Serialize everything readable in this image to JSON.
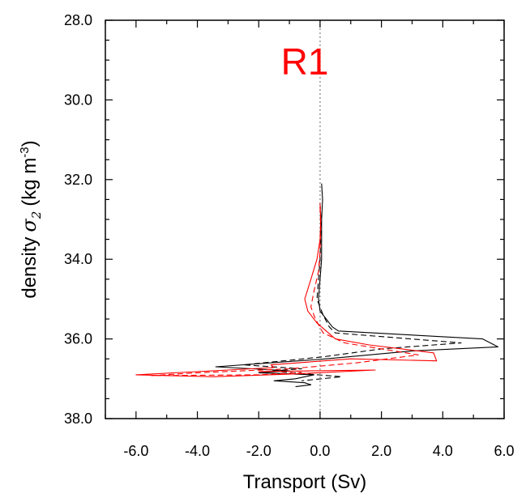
{
  "chart_data": {
    "type": "line",
    "title": "R1",
    "title_color": "#ff0000",
    "xlabel": "Transport (Sv)",
    "ylabel_prefix": "density",
    "ylabel_symbol": "σ",
    "ylabel_subscript": "2",
    "ylabel_units": "(kg m",
    "ylabel_units_superscript": "-3",
    "ylabel_units_close": ")",
    "xlim": [
      -7.0,
      6.0
    ],
    "ylim": [
      28.0,
      38.0
    ],
    "y_inverted": true,
    "x_ticks": [
      "-6.0",
      "-4.0",
      "-2.0",
      "0.0",
      "2.0",
      "4.0",
      "6.0"
    ],
    "y_ticks": [
      "28.0",
      "30.0",
      "32.0",
      "34.0",
      "36.0",
      "38.0"
    ],
    "zero_line": {
      "x": 0,
      "color": "#999999",
      "style": "dotted"
    },
    "grid": false,
    "series": [
      {
        "color": "#000000",
        "dash": "solid",
        "points": [
          [
            0.05,
            32.1
          ],
          [
            0.08,
            32.5
          ],
          [
            0.05,
            33.0
          ],
          [
            0.05,
            33.5
          ],
          [
            0.05,
            34.0
          ],
          [
            0.0,
            34.5
          ],
          [
            -0.05,
            35.0
          ],
          [
            0.0,
            35.3
          ],
          [
            0.2,
            35.5
          ],
          [
            0.4,
            35.7
          ],
          [
            0.6,
            35.8
          ],
          [
            5.3,
            36.0
          ],
          [
            5.8,
            36.2
          ],
          [
            3.0,
            36.3
          ],
          [
            0.2,
            36.5
          ],
          [
            -3.4,
            36.7
          ],
          [
            -1.0,
            36.8
          ],
          [
            -2.0,
            36.85
          ],
          [
            -0.2,
            36.9
          ],
          [
            -0.8,
            37.0
          ],
          [
            -1.5,
            37.05
          ],
          [
            -0.5,
            37.1
          ],
          [
            -0.3,
            37.15
          ],
          [
            -0.8,
            37.2
          ]
        ]
      },
      {
        "color": "#000000",
        "dash": "dashed",
        "points": [
          [
            0.0,
            32.6
          ],
          [
            0.03,
            33.0
          ],
          [
            0.02,
            33.5
          ],
          [
            0.0,
            34.0
          ],
          [
            -0.05,
            34.5
          ],
          [
            -0.1,
            35.0
          ],
          [
            0.1,
            35.4
          ],
          [
            0.3,
            35.7
          ],
          [
            0.5,
            35.85
          ],
          [
            4.6,
            36.1
          ],
          [
            2.0,
            36.25
          ],
          [
            0.1,
            36.45
          ],
          [
            -2.5,
            36.65
          ],
          [
            -0.6,
            36.75
          ],
          [
            -1.6,
            36.8
          ],
          [
            -0.4,
            36.88
          ],
          [
            0.7,
            36.95
          ],
          [
            -0.6,
            37.05
          ]
        ]
      },
      {
        "color": "#ff0000",
        "dash": "solid",
        "points": [
          [
            0.0,
            32.6
          ],
          [
            0.02,
            33.0
          ],
          [
            0.0,
            33.5
          ],
          [
            -0.1,
            34.0
          ],
          [
            -0.3,
            34.5
          ],
          [
            -0.5,
            35.0
          ],
          [
            -0.4,
            35.3
          ],
          [
            -0.1,
            35.6
          ],
          [
            0.5,
            36.0
          ],
          [
            1.6,
            36.15
          ],
          [
            3.7,
            36.35
          ],
          [
            3.8,
            36.55
          ],
          [
            1.0,
            36.5
          ],
          [
            -1.6,
            36.65
          ],
          [
            -1.5,
            36.72
          ],
          [
            -3.0,
            36.78
          ],
          [
            -6.0,
            36.9
          ],
          [
            -3.5,
            36.95
          ],
          [
            -0.9,
            36.88
          ],
          [
            1.8,
            36.78
          ],
          [
            -2.0,
            36.82
          ]
        ]
      },
      {
        "color": "#ff0000",
        "dash": "dashed",
        "points": [
          [
            0.0,
            32.7
          ],
          [
            0.02,
            33.2
          ],
          [
            0.0,
            33.8
          ],
          [
            -0.05,
            34.3
          ],
          [
            -0.2,
            34.8
          ],
          [
            -0.3,
            35.2
          ],
          [
            -0.15,
            35.5
          ],
          [
            0.1,
            35.85
          ],
          [
            0.8,
            36.1
          ],
          [
            3.2,
            36.4
          ],
          [
            1.2,
            36.6
          ],
          [
            -1.0,
            36.75
          ],
          [
            -4.0,
            36.85
          ],
          [
            -5.5,
            36.92
          ],
          [
            -2.0,
            36.9
          ],
          [
            -0.6,
            36.84
          ]
        ]
      }
    ]
  }
}
